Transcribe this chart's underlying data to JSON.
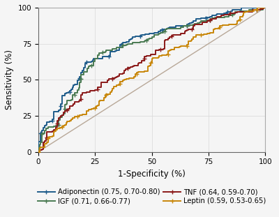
{
  "title": "",
  "xlabel": "1-Specificity (%)",
  "ylabel": "Sensitivity (%)",
  "xlim": [
    0,
    100
  ],
  "ylim": [
    0,
    100
  ],
  "xticks": [
    0,
    25,
    50,
    75,
    100
  ],
  "yticks": [
    0,
    25,
    50,
    75,
    100
  ],
  "curves": [
    {
      "label": "Adiponectin (0.75, 0.70-0.80)",
      "auc": 0.75,
      "color": "#1f5c8b",
      "lw": 1.4,
      "seed": 7
    },
    {
      "label": "IGF (0.71, 0.66-0.77)",
      "auc": 0.71,
      "color": "#4a7a52",
      "lw": 1.4,
      "seed": 14
    },
    {
      "label": "TNF (0.64, 0.59-0.70)",
      "auc": 0.64,
      "color": "#8b1a1a",
      "lw": 1.4,
      "seed": 21
    },
    {
      "label": "Leptin (0.59, 0.53-0.65)",
      "auc": 0.59,
      "color": "#c8870a",
      "lw": 1.4,
      "seed": 28
    }
  ],
  "reference_color": "#b8a898",
  "grid_color": "#d8d8d8",
  "background_color": "#f5f5f5",
  "legend_fontsize": 7.2,
  "axis_fontsize": 8.5,
  "tick_fontsize": 7.5,
  "marker": "+",
  "markersize": 5,
  "markevery": 25
}
